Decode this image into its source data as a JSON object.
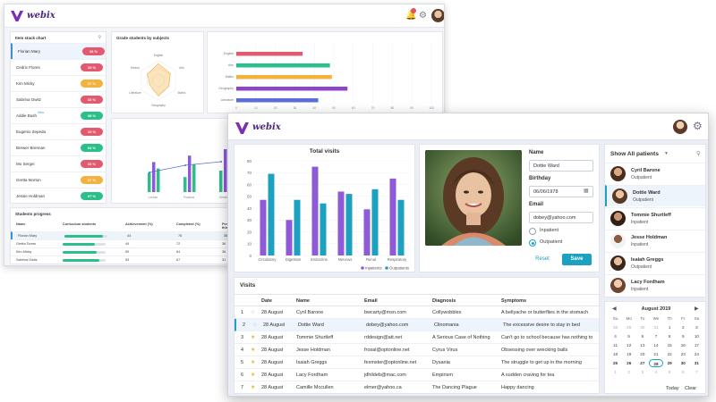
{
  "back": {
    "logo_text": "webix",
    "left_panel": {
      "title": "Item stack chart",
      "new_badge": "New",
      "students": [
        {
          "name": "Florian Mary",
          "pct": "33 %",
          "color": "#e35a70"
        },
        {
          "name": "Cedric Flores",
          "pct": "33 %",
          "color": "#e35a70"
        },
        {
          "name": "Kim Micky",
          "pct": "37 %",
          "color": "#f3b13d"
        },
        {
          "name": "Sabrina Owitz",
          "pct": "33 %",
          "color": "#e35a70"
        },
        {
          "name": "Addie Bush",
          "pct": "68 %",
          "color": "#2bbf8a"
        },
        {
          "name": "Eugenio Zepeda",
          "pct": "33 %",
          "color": "#e35a70"
        },
        {
          "name": "Brewer Brennan",
          "pct": "64 %",
          "color": "#2bbf8a"
        },
        {
          "name": "Mo Sergei",
          "pct": "33 %",
          "color": "#e35a70"
        },
        {
          "name": "Gretta Morton",
          "pct": "37 %",
          "color": "#f3b13d"
        },
        {
          "name": "Jessie Holdman",
          "pct": "67 %",
          "color": "#2bbf8a"
        }
      ]
    },
    "radar": {
      "title": "Grade students by subjects",
      "axes": [
        "English",
        "Arts",
        "Maths",
        "Geography",
        "Literature",
        "History"
      ]
    },
    "bars": {
      "categories": [
        "English",
        "Arts",
        "Maths",
        "Geography",
        "Literature"
      ],
      "values": [
        34,
        48,
        49,
        57,
        42
      ],
      "colors": [
        "#e35a70",
        "#2bbf8a",
        "#f3b13d",
        "#8e44c8",
        "#5a6fd6"
      ],
      "ticks": [
        "0",
        "10",
        "20",
        "30",
        "40",
        "50",
        "60",
        "70",
        "80",
        "90",
        "100"
      ]
    },
    "mini_chart": {
      "categories": [
        "Lecture",
        "Practical",
        "Seminar"
      ]
    },
    "progress": {
      "title": "Students progress",
      "headers": [
        "Name",
        "Curriculum students",
        "Achievement (%)",
        "Completed (%)",
        "Performance this week"
      ],
      "rows": [
        {
          "name": "Florian Mary",
          "bar": 0.9,
          "ach": "44",
          "comp": "76",
          "perf": "36"
        },
        {
          "name": "Gretta Torres",
          "bar": 0.75,
          "ach": "44",
          "comp": "72",
          "perf": "36"
        },
        {
          "name": "Kim Micky",
          "bar": 0.8,
          "ach": "59",
          "comp": "64",
          "perf": "36"
        },
        {
          "name": "Sabrina Owitz",
          "bar": 0.85,
          "ach": "53",
          "comp": "67",
          "perf": "31"
        }
      ]
    }
  },
  "front": {
    "logo_text": "webix",
    "total_visits": {
      "title": "Total visits",
      "categories": [
        "Circulatory",
        "Digestion",
        "Endocrine",
        "Nervous",
        "Renal",
        "Respiratory"
      ],
      "inpatients": [
        47,
        30,
        75,
        54,
        39,
        65
      ],
      "outpatients": [
        69,
        47,
        44,
        52,
        56,
        47
      ],
      "y_ticks": [
        "0",
        "10",
        "20",
        "30",
        "40",
        "50",
        "60",
        "70",
        "80"
      ],
      "ylim": [
        0,
        80
      ],
      "legend": [
        "Inpatients",
        "Outpatients"
      ],
      "colors": {
        "inpatients": "#8e5ad6",
        "outpatients": "#1ca1c1"
      }
    },
    "form": {
      "name_label": "Name",
      "name_value": "Dottie Ward",
      "birthday_label": "Birthday",
      "birthday_value": "06/06/1978",
      "email_label": "Email",
      "email_value": "dobey@yahoo.com",
      "radio_inpatient": "Inpatient",
      "radio_outpatient": "Outpatient",
      "reset_label": "Reset",
      "save_label": "Save"
    },
    "patients": {
      "header": "Show All patients",
      "items": [
        {
          "name": "Cyril Barone",
          "type": "Outpatient"
        },
        {
          "name": "Dottie Ward",
          "type": "Outpatient"
        },
        {
          "name": "Tommie Shurtleff",
          "type": "Inpatient"
        },
        {
          "name": "Jesse Holdman",
          "type": "Inpatient"
        },
        {
          "name": "Isaiah Greggs",
          "type": "Outpatient"
        },
        {
          "name": "Lacy Fordham",
          "type": "Inpatient"
        }
      ]
    },
    "calendar": {
      "month": "August 2019",
      "dow": [
        "Su",
        "Mo",
        "Tu",
        "We",
        "Th",
        "Fr",
        "Sa"
      ],
      "days": [
        "28",
        "29",
        "30",
        "31",
        "1",
        "2",
        "3",
        "4",
        "5",
        "6",
        "7",
        "8",
        "9",
        "10",
        "11",
        "12",
        "13",
        "14",
        "15",
        "16",
        "17",
        "18",
        "19",
        "20",
        "21",
        "22",
        "23",
        "24",
        "25",
        "26",
        "27",
        "28",
        "29",
        "30",
        "31",
        "1",
        "2",
        "3",
        "4",
        "5",
        "6",
        "7"
      ],
      "today_label": "Today",
      "clear_label": "Clear"
    },
    "visits": {
      "title": "Visits",
      "headers": [
        "Date",
        "Name",
        "Email",
        "Diagnosis",
        "Symptoms"
      ],
      "rows": [
        {
          "n": "1",
          "date": "28 August",
          "name": "Cyril Barone",
          "email": "bwcarty@msn.com",
          "diag": "Collywobbles",
          "sym": "A bellyache or butterflies in the stomach",
          "star": false
        },
        {
          "n": "2",
          "date": "28 August",
          "name": "Dottie Ward",
          "email": "dobey@yahoo.com",
          "diag": "Clinomania",
          "sym": "The excessive desire to stay in bed",
          "star": false
        },
        {
          "n": "3",
          "date": "28 August",
          "name": "Tommie Shurtleff",
          "email": "rddesign@att.net",
          "diag": "A Serious Case of Nothing",
          "sym": "Can't go to school because has nothing to",
          "star": true
        },
        {
          "n": "4",
          "date": "28 August",
          "name": "Jesse Holdman",
          "email": "frosal@optonline.net",
          "diag": "Cyrus Virus",
          "sym": "Obsessing over wrecking balls",
          "star": true
        },
        {
          "n": "5",
          "date": "28 August",
          "name": "Isaiah Greggs",
          "email": "fexmster@optonline.net",
          "diag": "Dysania",
          "sym": "The struggle to get up in the morning",
          "star": true
        },
        {
          "n": "6",
          "date": "28 August",
          "name": "Lacy Fordham",
          "email": "jdhildeb@mac.com",
          "diag": "Empirism",
          "sym": "A sudden craving for tea",
          "star": true
        },
        {
          "n": "7",
          "date": "28 August",
          "name": "Camille Mccullen",
          "email": "elmer@yahoo.ca",
          "diag": "The Dancing Plague",
          "sym": "Happy dancing",
          "star": true
        }
      ]
    }
  }
}
